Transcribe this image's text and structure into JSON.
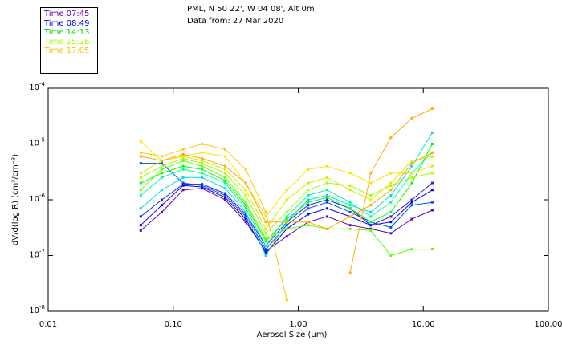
{
  "header": {
    "line1": "PML, N 50 22', W 04 08', Alt 0m",
    "line2": "Data from: 27 Mar 2020"
  },
  "legend": [
    {
      "label": "Time 07:45",
      "color": "#6000c0"
    },
    {
      "label": "Time 08:49",
      "color": "#0000ff"
    },
    {
      "label": "Time 14:13",
      "color": "#00e000"
    },
    {
      "label": "Time 15:26",
      "color": "#a0ff00"
    },
    {
      "label": "Time 17:05",
      "color": "#ffc000"
    }
  ],
  "chart_data": {
    "type": "line",
    "title": "",
    "xlabel": "Aerosol Size (µm)",
    "ylabel": "dV/d(log R) (cm³/cm⁻³)",
    "xscale": "log",
    "yscale": "log",
    "xlim": [
      0.01,
      100
    ],
    "ylim": [
      1e-08,
      0.0001
    ],
    "xticks": [
      {
        "v": 0.01,
        "label": "0.01"
      },
      {
        "v": 0.1,
        "label": "0.10"
      },
      {
        "v": 1,
        "label": "1.00"
      },
      {
        "v": 10,
        "label": "10.00"
      },
      {
        "v": 100,
        "label": "100.00"
      }
    ],
    "yticks": [
      {
        "v": 0.0001,
        "exp": "-4"
      },
      {
        "v": 1e-05,
        "exp": "-5"
      },
      {
        "v": 1e-06,
        "exp": "-6"
      },
      {
        "v": 1e-07,
        "exp": "-7"
      },
      {
        "v": 1e-08,
        "exp": "-8"
      }
    ],
    "x": [
      0.055,
      0.081,
      0.12,
      0.17,
      0.26,
      0.38,
      0.55,
      0.81,
      1.2,
      1.7,
      2.6,
      3.8,
      5.5,
      8.1,
      11.8
    ],
    "series": [
      {
        "name": "s1",
        "color": "#6000c0",
        "values": [
          2.8e-07,
          6e-07,
          1.5e-06,
          1.6e-06,
          1e-06,
          4e-07,
          1.2e-07,
          2.2e-07,
          4e-07,
          5e-07,
          3.5e-07,
          3e-07,
          2.5e-07,
          4.5e-07,
          6.5e-07
        ]
      },
      {
        "name": "s2",
        "color": "#0000ff",
        "values": [
          3.5e-07,
          8e-07,
          1.8e-06,
          1.7e-06,
          1.1e-06,
          4.5e-07,
          1.1e-07,
          3e-07,
          5.5e-07,
          7e-07,
          5e-07,
          3.5e-07,
          4e-07,
          9e-07,
          1.5e-06
        ]
      },
      {
        "name": "s3",
        "color": "#0050ff",
        "values": [
          4.5e-06,
          4.5e-06,
          2e-06,
          1.8e-06,
          1.2e-06,
          5e-07,
          1.3e-07,
          3.5e-07,
          7e-07,
          9e-07,
          6e-07,
          4e-07,
          3.2e-07,
          8e-07,
          9e-07
        ]
      },
      {
        "name": "s4",
        "color": "#2020e0",
        "values": [
          5e-07,
          1e-06,
          1.9e-06,
          1.9e-06,
          1.3e-06,
          5.5e-07,
          1.5e-07,
          4e-07,
          8e-07,
          1e-06,
          7e-07,
          3.5e-07,
          5e-07,
          1e-06,
          2e-06
        ]
      },
      {
        "name": "s5",
        "color": "#00e0e0",
        "values": [
          7e-07,
          1.5e-06,
          2.5e-06,
          2.5e-06,
          1.6e-06,
          6e-07,
          1e-07,
          4e-07,
          1e-06,
          1.2e-06,
          8e-07,
          6e-07,
          1.2e-06,
          4e-06,
          1.6e-05
        ]
      },
      {
        "name": "s6",
        "color": "#00ffa0",
        "values": [
          1.2e-06,
          2.5e-06,
          3.5e-06,
          3e-06,
          2e-06,
          7e-07,
          1.5e-07,
          5e-07,
          1.2e-06,
          1.5e-06,
          9e-07,
          5e-07,
          9e-07,
          3e-06,
          7e-06
        ]
      },
      {
        "name": "s7",
        "color": "#00ff00",
        "values": [
          2e-06,
          3e-06,
          4e-06,
          3.5e-06,
          2.2e-06,
          8e-07,
          1.8e-07,
          4.5e-07,
          9e-07,
          1.1e-06,
          7e-07,
          4e-07,
          6e-07,
          2e-06,
          1e-05
        ]
      },
      {
        "name": "s8",
        "color": "#60ff00",
        "values": [
          1.5e-06,
          3.5e-06,
          5e-06,
          4e-06,
          2.5e-06,
          9e-07,
          2e-07,
          3e-07,
          3.5e-07,
          3e-07,
          3e-07,
          2.8e-07,
          1e-07,
          1.3e-07,
          1.3e-07
        ]
      },
      {
        "name": "s9",
        "color": "#a0ff00",
        "values": [
          2.5e-06,
          4e-06,
          5.5e-06,
          4.5e-06,
          3e-06,
          1.2e-06,
          2.5e-07,
          6e-07,
          1.5e-06,
          2e-06,
          1.8e-06,
          1.2e-06,
          1.8e-06,
          2.5e-06,
          3e-06
        ]
      },
      {
        "name": "s10",
        "color": "#d0f000",
        "values": [
          3e-06,
          5e-06,
          6e-06,
          5e-06,
          3.5e-06,
          1.5e-06,
          3e-07,
          1e-06,
          2e-06,
          2.5e-06,
          1.5e-06,
          1e-06,
          2e-06,
          5e-06,
          6e-06
        ]
      },
      {
        "name": "s11",
        "color": "#ffe000",
        "values": [
          1.1e-05,
          5e-06,
          6e-06,
          7e-06,
          6e-06,
          2e-06,
          5e-07,
          1.5e-06,
          3.5e-06,
          4e-06,
          3e-06,
          2e-06,
          3e-06,
          3e-06,
          4e-06
        ]
      },
      {
        "name": "s12",
        "color": "#ffc800",
        "values": [
          7e-06,
          6e-06,
          8e-06,
          1e-05,
          8e-06,
          3.5e-06,
          6e-07,
          1.6e-08,
          null,
          null,
          null,
          null,
          null,
          null,
          null
        ]
      },
      {
        "name": "s13",
        "color": "#ffb000",
        "values": [
          null,
          null,
          null,
          null,
          null,
          null,
          null,
          null,
          null,
          null,
          4.9e-08,
          3e-06,
          1.3e-05,
          2.9e-05,
          4.3e-05
        ]
      },
      {
        "name": "s14",
        "color": "#ffa800",
        "values": [
          6e-06,
          5e-06,
          6.5e-06,
          5.5e-06,
          4e-06,
          2e-06,
          4e-07,
          4e-07,
          4e-07,
          3e-07,
          5e-07,
          8e-07,
          1.5e-06,
          4.5e-06,
          7e-06
        ]
      }
    ]
  }
}
